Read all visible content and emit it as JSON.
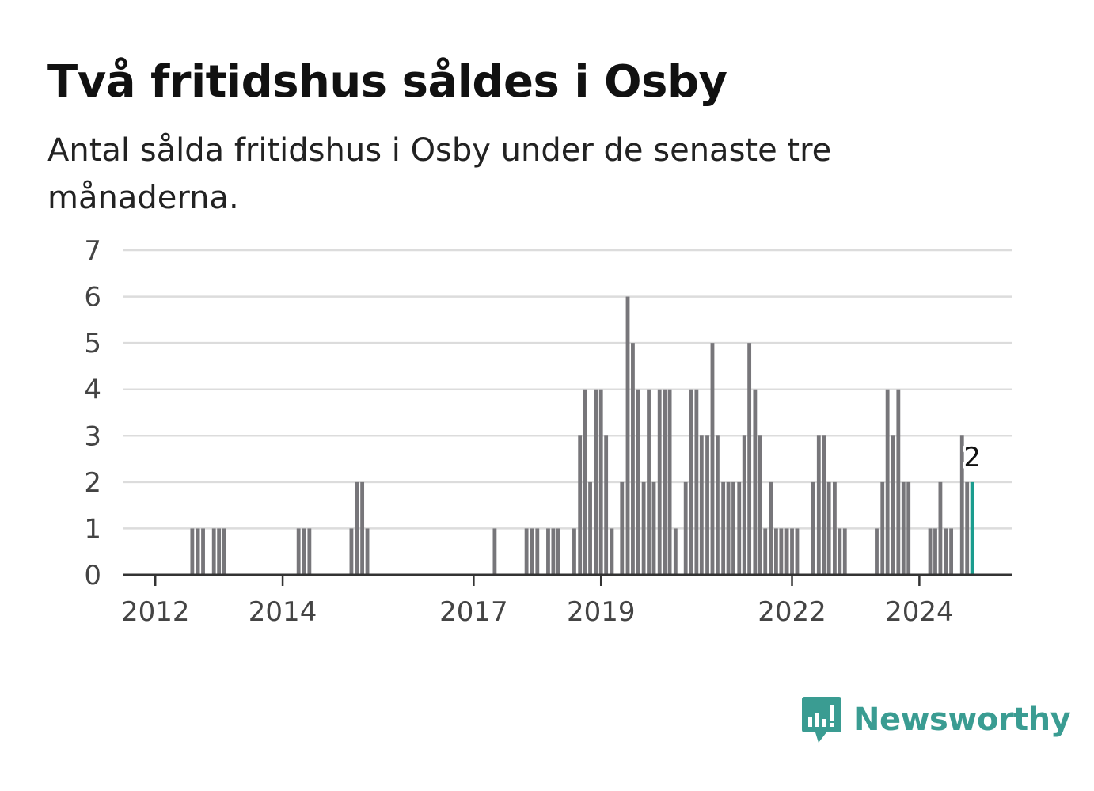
{
  "header": {
    "title": "Två fritidshus såldes i Osby",
    "subtitle": "Antal sålda fritidshus i Osby under de senaste tre månaderna."
  },
  "brand": {
    "name": "Newsworthy",
    "color": "#3a9c92"
  },
  "chart_data": {
    "type": "bar",
    "title": "Två fritidshus såldes i Osby",
    "subtitle": "Antal sålda fritidshus i Osby under de senaste tre månaderna.",
    "xlabel": "",
    "ylabel": "",
    "ylim": [
      0,
      7
    ],
    "yticks": [
      "0",
      "1",
      "2",
      "3",
      "4",
      "5",
      "6",
      "7"
    ],
    "xticks": [
      {
        "label": "2012",
        "x": 2012
      },
      {
        "label": "2014",
        "x": 2014
      },
      {
        "label": "2017",
        "x": 2017
      },
      {
        "label": "2019",
        "x": 2019
      },
      {
        "label": "2022",
        "x": 2022
      },
      {
        "label": "2024",
        "x": 2024
      }
    ],
    "xlim": [
      2011.5,
      2025.45
    ],
    "grid": true,
    "bar_color": "#77767a",
    "highlight_color": "#1a9c8e",
    "highlight_label": "2",
    "points": [
      {
        "x": 2012.58,
        "y": 1
      },
      {
        "x": 2012.67,
        "y": 1
      },
      {
        "x": 2012.75,
        "y": 1
      },
      {
        "x": 2012.92,
        "y": 1
      },
      {
        "x": 2013.0,
        "y": 1
      },
      {
        "x": 2013.08,
        "y": 1
      },
      {
        "x": 2014.25,
        "y": 1
      },
      {
        "x": 2014.33,
        "y": 1
      },
      {
        "x": 2014.42,
        "y": 1
      },
      {
        "x": 2015.08,
        "y": 1
      },
      {
        "x": 2015.17,
        "y": 2
      },
      {
        "x": 2015.25,
        "y": 2
      },
      {
        "x": 2015.33,
        "y": 1
      },
      {
        "x": 2017.33,
        "y": 1
      },
      {
        "x": 2017.83,
        "y": 1
      },
      {
        "x": 2017.92,
        "y": 1
      },
      {
        "x": 2018.0,
        "y": 1
      },
      {
        "x": 2018.17,
        "y": 1
      },
      {
        "x": 2018.25,
        "y": 1
      },
      {
        "x": 2018.33,
        "y": 1
      },
      {
        "x": 2018.58,
        "y": 1
      },
      {
        "x": 2018.67,
        "y": 3
      },
      {
        "x": 2018.75,
        "y": 4
      },
      {
        "x": 2018.83,
        "y": 2
      },
      {
        "x": 2018.92,
        "y": 4
      },
      {
        "x": 2019.0,
        "y": 4
      },
      {
        "x": 2019.08,
        "y": 3
      },
      {
        "x": 2019.17,
        "y": 1
      },
      {
        "x": 2019.33,
        "y": 2
      },
      {
        "x": 2019.42,
        "y": 6
      },
      {
        "x": 2019.5,
        "y": 5
      },
      {
        "x": 2019.58,
        "y": 4
      },
      {
        "x": 2019.67,
        "y": 2
      },
      {
        "x": 2019.75,
        "y": 4
      },
      {
        "x": 2019.83,
        "y": 2
      },
      {
        "x": 2019.92,
        "y": 4
      },
      {
        "x": 2020.0,
        "y": 4
      },
      {
        "x": 2020.08,
        "y": 4
      },
      {
        "x": 2020.17,
        "y": 1
      },
      {
        "x": 2020.33,
        "y": 2
      },
      {
        "x": 2020.42,
        "y": 4
      },
      {
        "x": 2020.5,
        "y": 4
      },
      {
        "x": 2020.58,
        "y": 3
      },
      {
        "x": 2020.67,
        "y": 3
      },
      {
        "x": 2020.75,
        "y": 5
      },
      {
        "x": 2020.83,
        "y": 3
      },
      {
        "x": 2020.92,
        "y": 2
      },
      {
        "x": 2021.0,
        "y": 2
      },
      {
        "x": 2021.08,
        "y": 2
      },
      {
        "x": 2021.17,
        "y": 2
      },
      {
        "x": 2021.25,
        "y": 3
      },
      {
        "x": 2021.33,
        "y": 5
      },
      {
        "x": 2021.42,
        "y": 4
      },
      {
        "x": 2021.5,
        "y": 3
      },
      {
        "x": 2021.58,
        "y": 1
      },
      {
        "x": 2021.67,
        "y": 2
      },
      {
        "x": 2021.75,
        "y": 1
      },
      {
        "x": 2021.83,
        "y": 1
      },
      {
        "x": 2021.92,
        "y": 1
      },
      {
        "x": 2022.0,
        "y": 1
      },
      {
        "x": 2022.08,
        "y": 1
      },
      {
        "x": 2022.33,
        "y": 2
      },
      {
        "x": 2022.42,
        "y": 3
      },
      {
        "x": 2022.5,
        "y": 3
      },
      {
        "x": 2022.58,
        "y": 2
      },
      {
        "x": 2022.67,
        "y": 2
      },
      {
        "x": 2022.75,
        "y": 1
      },
      {
        "x": 2022.83,
        "y": 1
      },
      {
        "x": 2023.33,
        "y": 1
      },
      {
        "x": 2023.42,
        "y": 2
      },
      {
        "x": 2023.5,
        "y": 4
      },
      {
        "x": 2023.58,
        "y": 3
      },
      {
        "x": 2023.67,
        "y": 4
      },
      {
        "x": 2023.75,
        "y": 2
      },
      {
        "x": 2023.83,
        "y": 2
      },
      {
        "x": 2024.17,
        "y": 1
      },
      {
        "x": 2024.25,
        "y": 1
      },
      {
        "x": 2024.33,
        "y": 2
      },
      {
        "x": 2024.42,
        "y": 1
      },
      {
        "x": 2024.5,
        "y": 1
      },
      {
        "x": 2024.67,
        "y": 3
      },
      {
        "x": 2024.75,
        "y": 2
      },
      {
        "x": 2024.83,
        "y": 2,
        "highlight": true
      }
    ]
  }
}
